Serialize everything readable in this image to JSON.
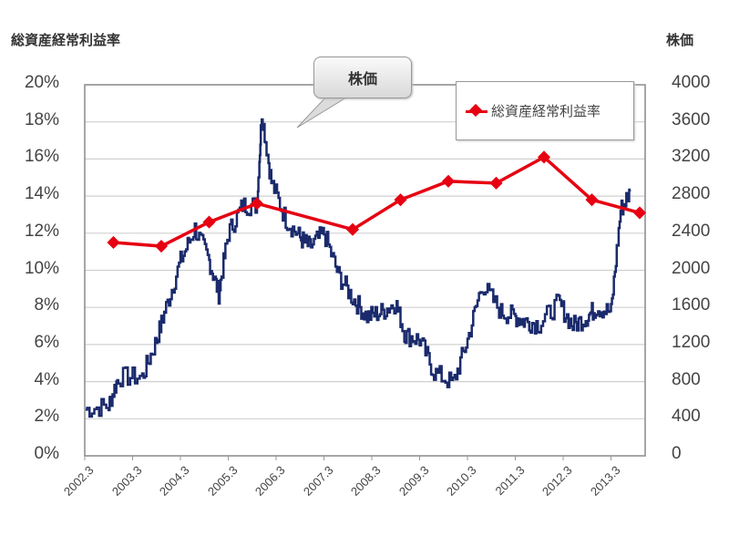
{
  "chart_data": {
    "type": "line",
    "title": "",
    "left_axis_title": "総資産経常利益率",
    "right_axis_title": "株価",
    "xlabel": "",
    "ylabel": "総資産経常利益率",
    "y2label": "株価",
    "categories": [
      "2002.3",
      "2003.3",
      "2004.3",
      "2005.3",
      "2006.3",
      "2007.3",
      "2008.3",
      "2009.3",
      "2010.3",
      "2011.3",
      "2012.3",
      "2013.3"
    ],
    "y_ticks": [
      "0%",
      "2%",
      "4%",
      "6%",
      "8%",
      "10%",
      "12%",
      "14%",
      "16%",
      "18%",
      "20%"
    ],
    "y2_ticks": [
      "0",
      "400",
      "800",
      "1200",
      "1600",
      "2000",
      "2400",
      "2800",
      "3200",
      "3600",
      "4000"
    ],
    "ylim": [
      0,
      20
    ],
    "y2lim": [
      0,
      4000
    ],
    "grid": true,
    "legend_position": "upper right",
    "series": [
      {
        "name": "総資産経常利益率",
        "axis": "left",
        "color": "#e60012",
        "marker": "diamond",
        "x": [
          "2002.9",
          "2003.9",
          "2004.9",
          "2005.9",
          "2007.9",
          "2008.9",
          "2009.9",
          "2010.9",
          "2011.9",
          "2012.9",
          "2013.9"
        ],
        "values": [
          11.5,
          11.3,
          12.6,
          13.6,
          12.2,
          13.8,
          14.8,
          14.7,
          16.1,
          13.8,
          13.1
        ]
      },
      {
        "name": "株価",
        "axis": "right",
        "color": "#1a2a6c",
        "marker": "none",
        "x_approx": [
          "2002.3",
          "2002.8",
          "2003.0",
          "2003.5",
          "2003.8",
          "2004.0",
          "2004.3",
          "2004.6",
          "2004.9",
          "2005.1",
          "2005.3",
          "2005.6",
          "2005.9",
          "2006.0",
          "2006.2",
          "2006.5",
          "2006.8",
          "2007.0",
          "2007.3",
          "2007.6",
          "2007.9",
          "2008.2",
          "2008.5",
          "2008.8",
          "2009.0",
          "2009.3",
          "2009.6",
          "2010.0",
          "2010.3",
          "2010.6",
          "2011.0",
          "2011.3",
          "2011.5",
          "2011.8",
          "2012.2",
          "2012.5",
          "2012.8",
          "2013.0",
          "2013.3",
          "2013.5",
          "2013.7"
        ],
        "values": [
          500,
          540,
          850,
          850,
          1250,
          1600,
          2100,
          2450,
          2100,
          1750,
          2400,
          2700,
          2700,
          3700,
          2950,
          2550,
          2350,
          2250,
          2400,
          1950,
          1700,
          1500,
          1550,
          1650,
          1300,
          1250,
          900,
          780,
          1250,
          1850,
          1550,
          1500,
          1450,
          1420,
          1650,
          1400,
          1500,
          1600,
          1550,
          2650,
          2850
        ]
      }
    ],
    "annotations": [
      {
        "text": "株価",
        "type": "callout",
        "points_to": "2006.3 peak"
      }
    ]
  },
  "labels": {
    "left_axis_title": "総資産経常利益率",
    "right_axis_title": "株価",
    "legend_label": "総資産経常利益率",
    "callout_text": "株価"
  },
  "colors": {
    "roa_line": "#e60012",
    "stock_line": "#1a2a6c",
    "grid": "#d0d0d0",
    "axis": "#888888"
  }
}
